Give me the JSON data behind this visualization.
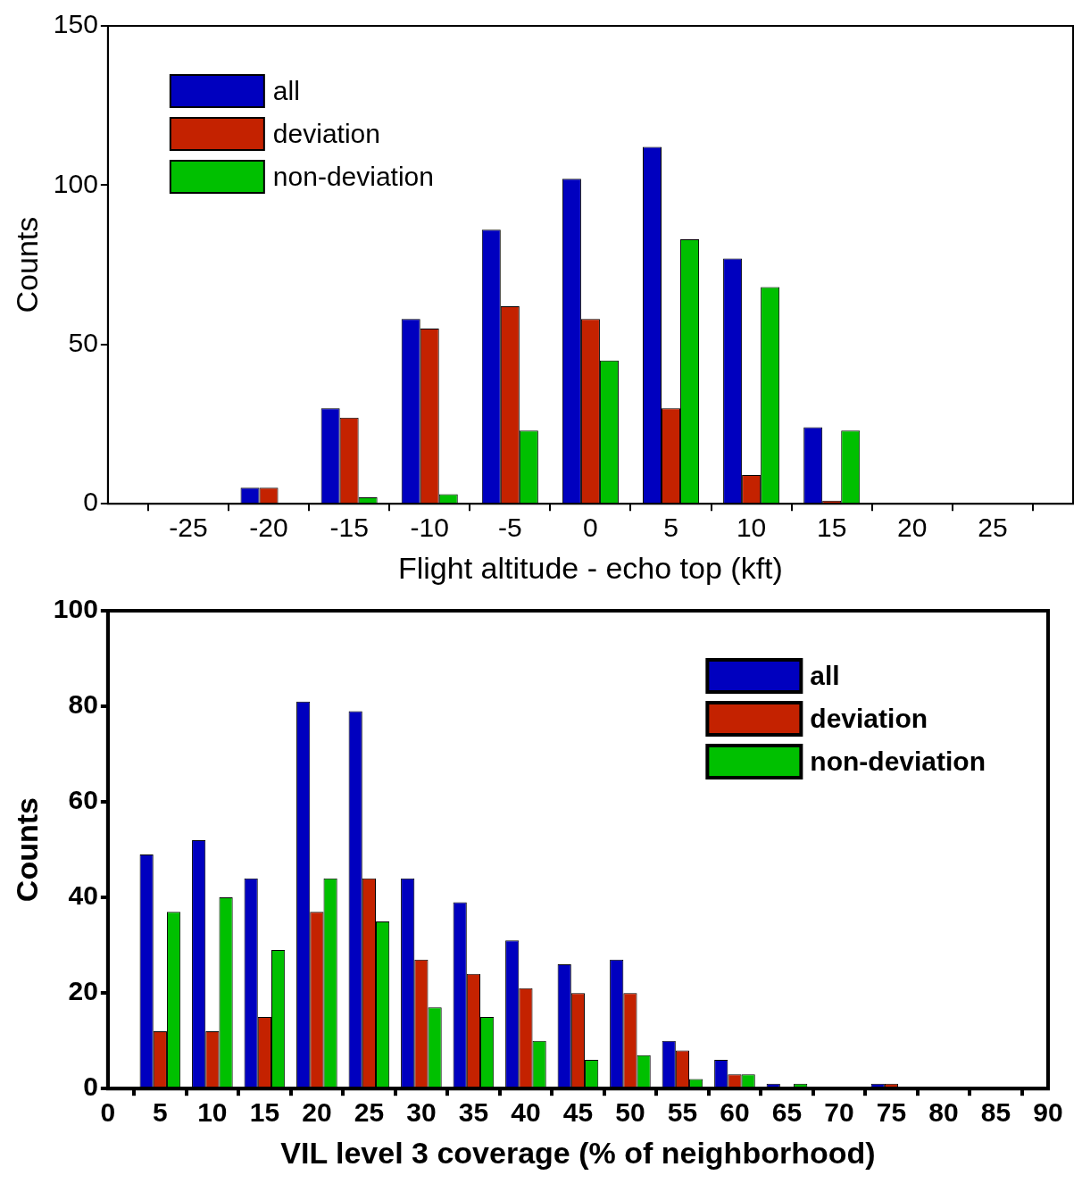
{
  "chart_data": [
    {
      "type": "bar",
      "xlabel": "Flight altitude - echo top (kft)",
      "ylabel": "Counts",
      "x": [
        -20,
        -15,
        -10,
        -5,
        0,
        5,
        10,
        15
      ],
      "xlim": [
        -30,
        30
      ],
      "xticks": [
        -25,
        -20,
        -15,
        -10,
        -5,
        0,
        5,
        10,
        15,
        20,
        25
      ],
      "ylim": [
        0,
        150
      ],
      "yticks": [
        0,
        50,
        100,
        150
      ],
      "legend": "top left",
      "grid": false,
      "series": [
        {
          "name": "all",
          "color": "#0000bf",
          "values": [
            5,
            30,
            58,
            86,
            102,
            112,
            77,
            24
          ]
        },
        {
          "name": "deviation",
          "color": "#c42200",
          "values": [
            5,
            27,
            55,
            62,
            58,
            30,
            9,
            1
          ]
        },
        {
          "name": "non-deviation",
          "color": "#00c000",
          "values": [
            0,
            2,
            3,
            23,
            45,
            83,
            68,
            23
          ]
        }
      ]
    },
    {
      "type": "bar",
      "xlabel": "VIL level 3 coverage (% of neighborhood)",
      "ylabel": "Counts",
      "x": [
        5,
        10,
        15,
        20,
        25,
        30,
        35,
        40,
        45,
        50,
        55,
        60,
        65,
        70,
        75
      ],
      "xlim": [
        0,
        90
      ],
      "xticks": [
        0,
        5,
        10,
        15,
        20,
        25,
        30,
        35,
        40,
        45,
        50,
        55,
        60,
        65,
        70,
        75,
        80,
        85,
        90
      ],
      "ylim": [
        0,
        100
      ],
      "yticks": [
        0,
        20,
        40,
        60,
        80,
        100
      ],
      "legend": "top right",
      "grid": false,
      "series": [
        {
          "name": "all",
          "color": "#0000bf",
          "values": [
            49,
            52,
            44,
            81,
            79,
            44,
            39,
            31,
            26,
            27,
            10,
            6,
            1,
            0,
            1
          ]
        },
        {
          "name": "deviation",
          "color": "#c42200",
          "values": [
            12,
            12,
            15,
            37,
            44,
            27,
            24,
            21,
            20,
            20,
            8,
            3,
            0,
            0,
            1
          ]
        },
        {
          "name": "non-deviation",
          "color": "#00c000",
          "values": [
            37,
            40,
            29,
            44,
            35,
            17,
            15,
            10,
            6,
            7,
            2,
            3,
            1,
            0,
            0
          ]
        }
      ]
    }
  ]
}
